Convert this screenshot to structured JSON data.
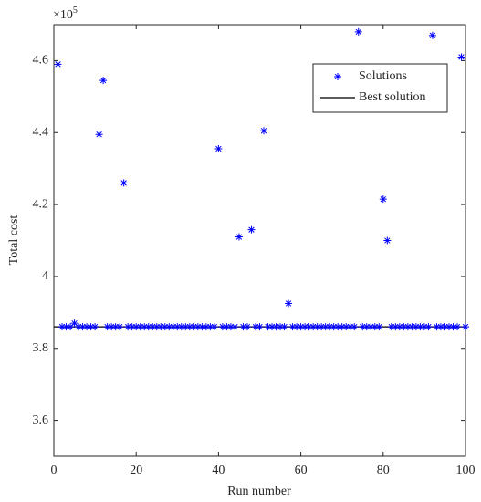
{
  "chart_data": {
    "type": "scatter",
    "xlabel": "Run number",
    "ylabel": "Total cost",
    "y_multiplier": {
      "base": "×10",
      "exponent": "5"
    },
    "xlim": [
      0,
      100
    ],
    "ylim": [
      3.5,
      4.7
    ],
    "xticks": [
      0,
      20,
      40,
      60,
      80,
      100
    ],
    "yticks": [
      3.6,
      3.8,
      4,
      4.2,
      4.4,
      4.6
    ],
    "legend": "upper right",
    "series": [
      {
        "name": "Solutions",
        "color": "#0000ff",
        "marker": "asterisk",
        "x": [
          1,
          2,
          3,
          4,
          5,
          6,
          7,
          8,
          9,
          10,
          11,
          12,
          13,
          14,
          15,
          16,
          17,
          18,
          19,
          20,
          21,
          22,
          23,
          24,
          25,
          26,
          27,
          28,
          29,
          30,
          31,
          32,
          33,
          34,
          35,
          36,
          37,
          38,
          39,
          40,
          41,
          42,
          43,
          44,
          45,
          46,
          47,
          48,
          49,
          50,
          51,
          52,
          53,
          54,
          55,
          56,
          57,
          58,
          59,
          60,
          61,
          62,
          63,
          64,
          65,
          66,
          67,
          68,
          69,
          70,
          71,
          72,
          73,
          74,
          75,
          76,
          77,
          78,
          79,
          80,
          81,
          82,
          83,
          84,
          85,
          86,
          87,
          88,
          89,
          90,
          91,
          92,
          93,
          94,
          95,
          96,
          97,
          98,
          99,
          100
        ],
        "values": [
          4.59,
          3.86,
          3.86,
          3.86,
          3.87,
          3.86,
          3.86,
          3.86,
          3.86,
          3.86,
          4.395,
          4.545,
          3.86,
          3.86,
          3.86,
          3.86,
          4.26,
          3.86,
          3.86,
          3.86,
          3.86,
          3.86,
          3.86,
          3.86,
          3.86,
          3.86,
          3.86,
          3.86,
          3.86,
          3.86,
          3.86,
          3.86,
          3.86,
          3.86,
          3.86,
          3.86,
          3.86,
          3.86,
          3.86,
          4.355,
          3.86,
          3.86,
          3.86,
          3.86,
          4.11,
          3.86,
          3.86,
          4.13,
          3.86,
          3.86,
          4.405,
          3.86,
          3.86,
          3.86,
          3.86,
          3.86,
          3.925,
          3.86,
          3.86,
          3.86,
          3.86,
          3.86,
          3.86,
          3.86,
          3.86,
          3.86,
          3.86,
          3.86,
          3.86,
          3.86,
          3.86,
          3.86,
          3.86,
          4.68,
          3.86,
          3.86,
          3.86,
          3.86,
          3.86,
          4.215,
          4.1,
          3.86,
          3.86,
          3.86,
          3.86,
          3.86,
          3.86,
          3.86,
          3.86,
          3.86,
          3.86,
          4.67,
          3.86,
          3.86,
          3.86,
          3.86,
          3.86,
          3.86,
          4.61,
          3.86
        ]
      }
    ],
    "best_solution": {
      "name": "Best solution",
      "color": "#262626",
      "value": 3.86
    }
  }
}
